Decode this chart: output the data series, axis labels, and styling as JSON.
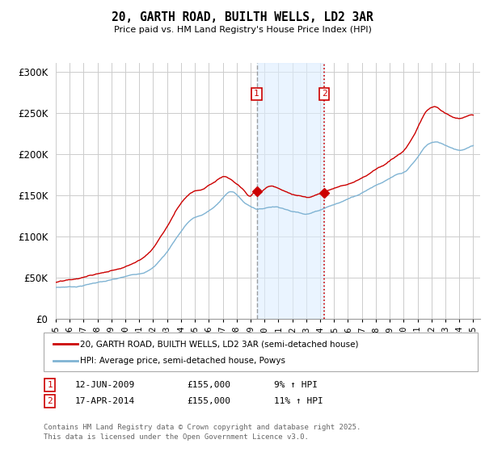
{
  "title": "20, GARTH ROAD, BUILTH WELLS, LD2 3AR",
  "subtitle": "Price paid vs. HM Land Registry's House Price Index (HPI)",
  "ylim": [
    0,
    310000
  ],
  "yticks": [
    0,
    50000,
    100000,
    150000,
    200000,
    250000,
    300000
  ],
  "background_color": "#ffffff",
  "grid_color": "#cccccc",
  "line1_color": "#cc0000",
  "line2_color": "#7fb3d3",
  "shade_color": "#ddeeff",
  "vline1_color": "#888888",
  "vline2_color": "#cc0000",
  "ann_box_color": "#cc0000",
  "annotation1": {
    "x": 2009.44,
    "label": "1",
    "date": "12-JUN-2009",
    "price": "£155,000",
    "pct": "9% ↑ HPI"
  },
  "annotation2": {
    "x": 2014.29,
    "label": "2",
    "date": "17-APR-2014",
    "price": "£155,000",
    "pct": "11% ↑ HPI"
  },
  "legend_label1": "20, GARTH ROAD, BUILTH WELLS, LD2 3AR (semi-detached house)",
  "legend_label2": "HPI: Average price, semi-detached house, Powys",
  "footnote": "Contains HM Land Registry data © Crown copyright and database right 2025.\nThis data is licensed under the Open Government Licence v3.0.",
  "xmin": 1995.0,
  "xmax": 2025.5
}
